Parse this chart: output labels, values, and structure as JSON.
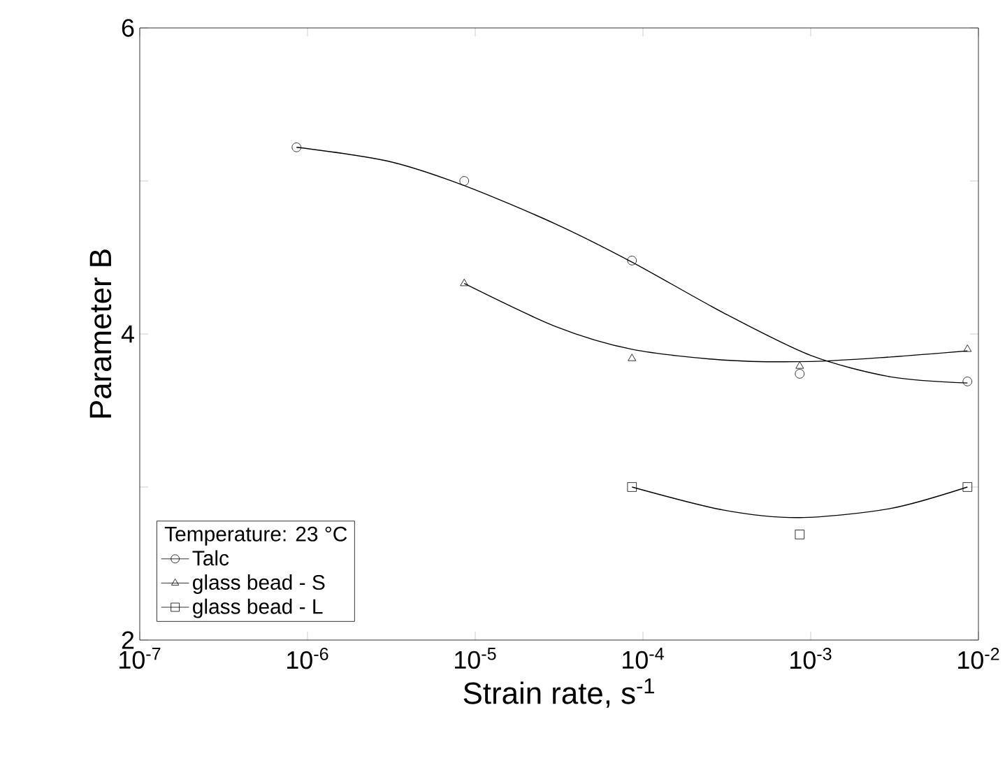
{
  "chart_data": {
    "type": "scatter",
    "xlabel": "Strain rate, s$^{-1}$",
    "ylabel": "Parameter B",
    "log": "x",
    "xlim": [
      1e-07,
      0.01
    ],
    "ylim": [
      2,
      6
    ],
    "xticks": [
      {
        "value": 1e-07,
        "label": "10$^{-7}$"
      },
      {
        "value": 1e-06,
        "label": "10$^{-6}$"
      },
      {
        "value": 1e-05,
        "label": "10$^{-5}$"
      },
      {
        "value": 0.0001,
        "label": "10$^{-4}$"
      },
      {
        "value": 0.001,
        "label": "10$^{-3}$"
      },
      {
        "value": 0.01,
        "label": "10$^{-2}$"
      }
    ],
    "yticks": [
      2,
      {
        "value": 3,
        "label": null
      },
      4,
      {
        "value": 5,
        "label": null
      },
      6
    ],
    "legend": "bottom left",
    "legend_title": "Temperature: 23 °C",
    "series": [
      {
        "name": "Talc",
        "type": "scatter",
        "marker": "circle",
        "color": "#000000",
        "x": [
          8.6e-07,
          8.6e-06,
          8.6e-05,
          0.00086,
          0.0086
        ],
        "values": [
          5.22,
          5.0,
          4.48,
          3.74,
          3.69
        ]
      },
      {
        "name": "glass bead - S",
        "type": "scatter",
        "marker": "triangle",
        "color": "#000000",
        "x": [
          8.6e-06,
          8.6e-05,
          0.00086,
          0.0086
        ],
        "values": [
          4.33,
          3.84,
          3.79,
          3.9
        ]
      },
      {
        "name": "glass bead - L",
        "type": "scatter",
        "marker": "square",
        "color": "#000000",
        "x": [
          8.6e-05,
          0.00086,
          0.0086
        ],
        "values": [
          3.0,
          2.69,
          3.0
        ]
      },
      {
        "type": "line",
        "color": "#000000",
        "x": [
          8.6e-07,
          3e-06,
          8.6e-06,
          3e-05,
          8.6e-05,
          0.0003,
          0.001,
          0.003,
          0.0086
        ],
        "values": [
          5.22,
          5.13,
          4.97,
          4.72,
          4.47,
          4.14,
          3.86,
          3.72,
          3.68
        ]
      },
      {
        "type": "line",
        "color": "#000000",
        "x": [
          8.6e-06,
          3e-05,
          8.6e-05,
          0.0003,
          0.001,
          0.003,
          0.0086
        ],
        "values": [
          4.33,
          4.05,
          3.9,
          3.83,
          3.82,
          3.85,
          3.89
        ]
      },
      {
        "type": "line",
        "color": "#000000",
        "x": [
          8.6e-05,
          0.0003,
          0.00086,
          0.003,
          0.0086
        ],
        "values": [
          3.0,
          2.85,
          2.8,
          2.86,
          3.0
        ]
      }
    ]
  }
}
